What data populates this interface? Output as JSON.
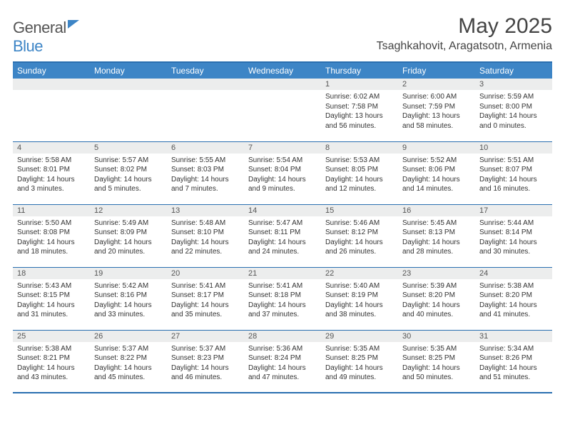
{
  "logo": {
    "word1": "General",
    "word2": "Blue"
  },
  "title": "May 2025",
  "location": "Tsaghkahovit, Aragatsotn, Armenia",
  "colors": {
    "header_bg": "#3d85c6",
    "rule": "#2a6fb0",
    "daynum_bg": "#eceded",
    "text": "#333333",
    "title_text": "#444444"
  },
  "weekdays": [
    "Sunday",
    "Monday",
    "Tuesday",
    "Wednesday",
    "Thursday",
    "Friday",
    "Saturday"
  ],
  "grid": [
    [
      null,
      null,
      null,
      null,
      {
        "n": "1",
        "sr": "6:02 AM",
        "ss": "7:58 PM",
        "dl": "13 hours and 56 minutes."
      },
      {
        "n": "2",
        "sr": "6:00 AM",
        "ss": "7:59 PM",
        "dl": "13 hours and 58 minutes."
      },
      {
        "n": "3",
        "sr": "5:59 AM",
        "ss": "8:00 PM",
        "dl": "14 hours and 0 minutes."
      }
    ],
    [
      {
        "n": "4",
        "sr": "5:58 AM",
        "ss": "8:01 PM",
        "dl": "14 hours and 3 minutes."
      },
      {
        "n": "5",
        "sr": "5:57 AM",
        "ss": "8:02 PM",
        "dl": "14 hours and 5 minutes."
      },
      {
        "n": "6",
        "sr": "5:55 AM",
        "ss": "8:03 PM",
        "dl": "14 hours and 7 minutes."
      },
      {
        "n": "7",
        "sr": "5:54 AM",
        "ss": "8:04 PM",
        "dl": "14 hours and 9 minutes."
      },
      {
        "n": "8",
        "sr": "5:53 AM",
        "ss": "8:05 PM",
        "dl": "14 hours and 12 minutes."
      },
      {
        "n": "9",
        "sr": "5:52 AM",
        "ss": "8:06 PM",
        "dl": "14 hours and 14 minutes."
      },
      {
        "n": "10",
        "sr": "5:51 AM",
        "ss": "8:07 PM",
        "dl": "14 hours and 16 minutes."
      }
    ],
    [
      {
        "n": "11",
        "sr": "5:50 AM",
        "ss": "8:08 PM",
        "dl": "14 hours and 18 minutes."
      },
      {
        "n": "12",
        "sr": "5:49 AM",
        "ss": "8:09 PM",
        "dl": "14 hours and 20 minutes."
      },
      {
        "n": "13",
        "sr": "5:48 AM",
        "ss": "8:10 PM",
        "dl": "14 hours and 22 minutes."
      },
      {
        "n": "14",
        "sr": "5:47 AM",
        "ss": "8:11 PM",
        "dl": "14 hours and 24 minutes."
      },
      {
        "n": "15",
        "sr": "5:46 AM",
        "ss": "8:12 PM",
        "dl": "14 hours and 26 minutes."
      },
      {
        "n": "16",
        "sr": "5:45 AM",
        "ss": "8:13 PM",
        "dl": "14 hours and 28 minutes."
      },
      {
        "n": "17",
        "sr": "5:44 AM",
        "ss": "8:14 PM",
        "dl": "14 hours and 30 minutes."
      }
    ],
    [
      {
        "n": "18",
        "sr": "5:43 AM",
        "ss": "8:15 PM",
        "dl": "14 hours and 31 minutes."
      },
      {
        "n": "19",
        "sr": "5:42 AM",
        "ss": "8:16 PM",
        "dl": "14 hours and 33 minutes."
      },
      {
        "n": "20",
        "sr": "5:41 AM",
        "ss": "8:17 PM",
        "dl": "14 hours and 35 minutes."
      },
      {
        "n": "21",
        "sr": "5:41 AM",
        "ss": "8:18 PM",
        "dl": "14 hours and 37 minutes."
      },
      {
        "n": "22",
        "sr": "5:40 AM",
        "ss": "8:19 PM",
        "dl": "14 hours and 38 minutes."
      },
      {
        "n": "23",
        "sr": "5:39 AM",
        "ss": "8:20 PM",
        "dl": "14 hours and 40 minutes."
      },
      {
        "n": "24",
        "sr": "5:38 AM",
        "ss": "8:20 PM",
        "dl": "14 hours and 41 minutes."
      }
    ],
    [
      {
        "n": "25",
        "sr": "5:38 AM",
        "ss": "8:21 PM",
        "dl": "14 hours and 43 minutes."
      },
      {
        "n": "26",
        "sr": "5:37 AM",
        "ss": "8:22 PM",
        "dl": "14 hours and 45 minutes."
      },
      {
        "n": "27",
        "sr": "5:37 AM",
        "ss": "8:23 PM",
        "dl": "14 hours and 46 minutes."
      },
      {
        "n": "28",
        "sr": "5:36 AM",
        "ss": "8:24 PM",
        "dl": "14 hours and 47 minutes."
      },
      {
        "n": "29",
        "sr": "5:35 AM",
        "ss": "8:25 PM",
        "dl": "14 hours and 49 minutes."
      },
      {
        "n": "30",
        "sr": "5:35 AM",
        "ss": "8:25 PM",
        "dl": "14 hours and 50 minutes."
      },
      {
        "n": "31",
        "sr": "5:34 AM",
        "ss": "8:26 PM",
        "dl": "14 hours and 51 minutes."
      }
    ]
  ],
  "labels": {
    "sunrise": "Sunrise:",
    "sunset": "Sunset:",
    "daylight": "Daylight:"
  }
}
